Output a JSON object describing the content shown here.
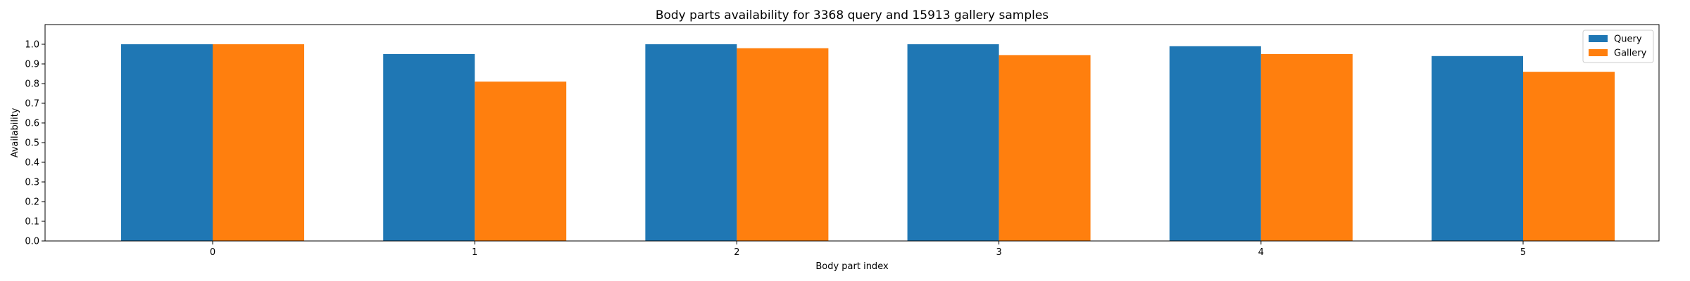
{
  "chart_data": {
    "type": "bar",
    "title": "Body parts availability for 3368 query and 15913 gallery samples",
    "xlabel": "Body part index",
    "ylabel": "Availability",
    "categories": [
      "0",
      "1",
      "2",
      "3",
      "4",
      "5"
    ],
    "series": [
      {
        "name": "Query",
        "color": "#1f77b4",
        "values": [
          1.0,
          0.95,
          1.0,
          1.0,
          0.99,
          0.94
        ]
      },
      {
        "name": "Gallery",
        "color": "#ff7f0e",
        "values": [
          1.0,
          0.81,
          0.98,
          0.945,
          0.95,
          0.86
        ]
      }
    ],
    "ylim": [
      0,
      1.1
    ],
    "yticks": [
      "0.0",
      "0.1",
      "0.2",
      "0.3",
      "0.4",
      "0.5",
      "0.6",
      "0.7",
      "0.8",
      "0.9",
      "1.0"
    ],
    "legend_position": "top-right",
    "grid": false
  }
}
